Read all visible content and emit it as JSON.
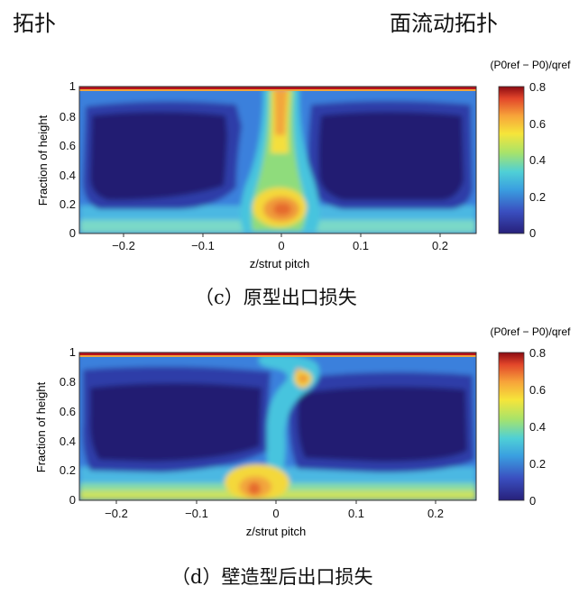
{
  "header": {
    "left_fragment": "拓扑",
    "right_fragment": "面流动拓扑"
  },
  "panels": [
    {
      "caption": "（c）原型出口损失",
      "xlabel": "z/strut pitch",
      "ylabel": "Fraction of height",
      "colorbar_title": "(P0ref − P0)/qref",
      "colorbar_ticks": [
        "0.8",
        "0.6",
        "0.4",
        "0.2",
        "0"
      ],
      "x_ticks": [
        "−0.2",
        "−0.1",
        "0",
        "0.1",
        "0.2"
      ],
      "y_ticks": [
        "1",
        "0.8",
        "0.6",
        "0.4",
        "0.2",
        "0"
      ]
    },
    {
      "caption": "（d）壁造型后出口损失",
      "xlabel": "z/strut pitch",
      "ylabel": "Fraction of height",
      "colorbar_title": "(P0ref − P0)/qref",
      "colorbar_ticks": [
        "0.8",
        "0.6",
        "0.4",
        "0.2",
        "0"
      ],
      "x_ticks": [
        "−0.2",
        "−0.1",
        "0",
        "0.1",
        "0.2"
      ],
      "y_ticks": [
        "1",
        "0.8",
        "0.6",
        "0.4",
        "0.2",
        "0"
      ]
    }
  ],
  "colors": {
    "low": "#22206e",
    "mid": "#45c6dc",
    "high": "#c2121a"
  }
}
